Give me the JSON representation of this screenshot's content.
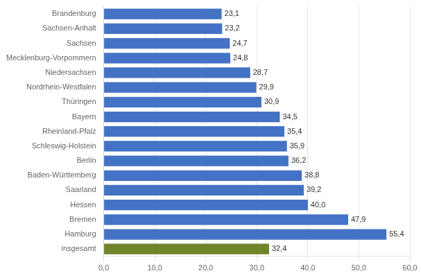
{
  "chart_data": {
    "type": "bar",
    "orientation": "horizontal",
    "categories": [
      "Brandenburg",
      "Sachsen-Anhalt",
      "Sachsen",
      "Mecklenburg-Vorpommern",
      "Niedersachsen",
      "Nordrhein-Westfalen",
      "Thüringen",
      "Bayern",
      "Rheinland-Pfalz",
      "Schleswig-Holstein",
      "Berlin",
      "Baden-Württemberg",
      "Saarland",
      "Hessen",
      "Bremen",
      "Hamburg",
      "insgesamt"
    ],
    "values": [
      23.1,
      23.2,
      24.7,
      24.8,
      28.7,
      29.9,
      30.9,
      34.5,
      35.4,
      35.9,
      36.2,
      38.8,
      39.2,
      40.0,
      47.9,
      55.4,
      32.4
    ],
    "value_labels": [
      "23,1",
      "23,2",
      "24,7",
      "24,8",
      "28,7",
      "29,9",
      "30,9",
      "34,5",
      "35,4",
      "35,9",
      "36,2",
      "38,8",
      "39,2",
      "40,0",
      "47,9",
      "55,4",
      "32,4"
    ],
    "data_labels": true,
    "colors": [
      "#4472C4",
      "#4472C4",
      "#4472C4",
      "#4472C4",
      "#4472C4",
      "#4472C4",
      "#4472C4",
      "#4472C4",
      "#4472C4",
      "#4472C4",
      "#4472C4",
      "#4472C4",
      "#4472C4",
      "#4472C4",
      "#4472C4",
      "#4472C4",
      "#70842A"
    ],
    "xlim": [
      0,
      60
    ],
    "xticks": [
      {
        "value": 0,
        "label": "0,0"
      },
      {
        "value": 10,
        "label": "10,0"
      },
      {
        "value": 20,
        "label": "20,0"
      },
      {
        "value": 30,
        "label": "30,0"
      },
      {
        "value": 40,
        "label": "40,0"
      },
      {
        "value": 50,
        "label": "50,0"
      },
      {
        "value": 60,
        "label": "60,0"
      }
    ],
    "grid": true
  }
}
